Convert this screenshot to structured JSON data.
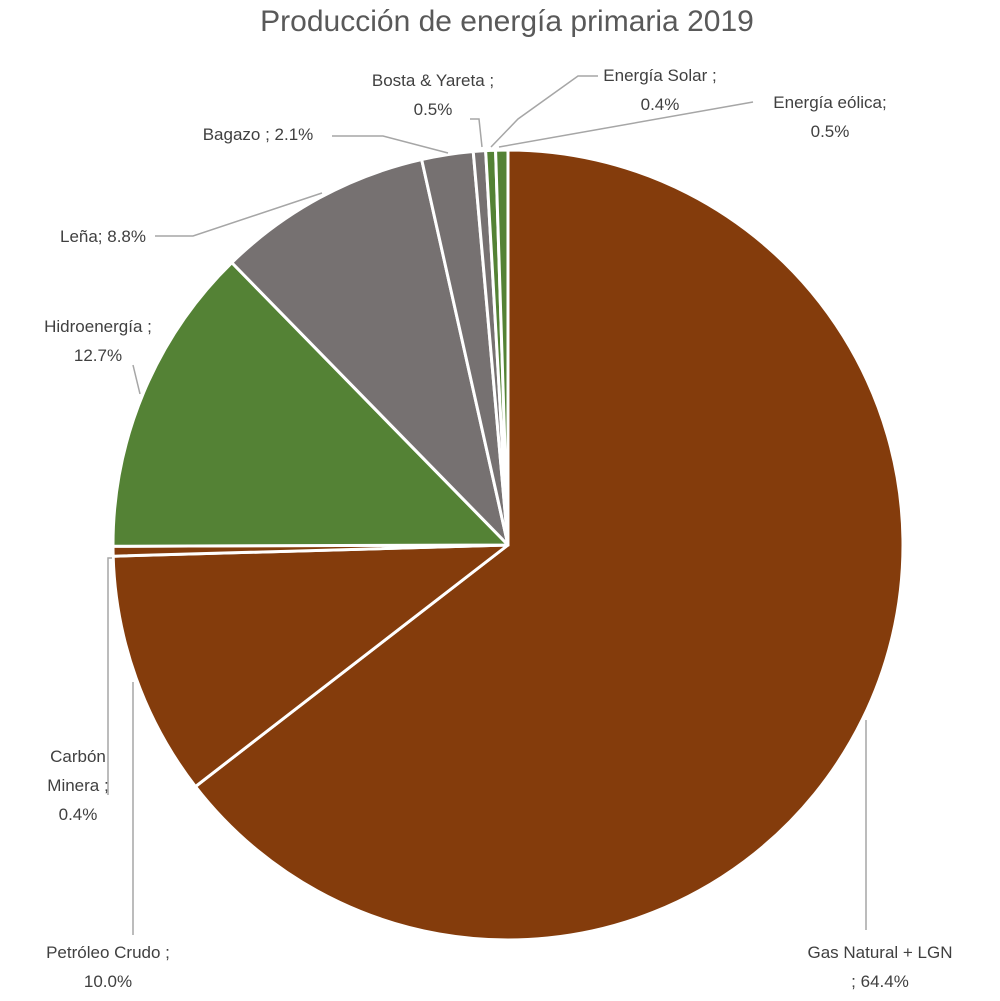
{
  "chart_data": {
    "type": "pie",
    "title": "Producción de energía primaria 2019",
    "start_angle_deg": 0,
    "direction": "clockwise",
    "slices": [
      {
        "name": "Gas Natural + LGN",
        "value": 64.4,
        "label_lines": [
          "Gas Natural + LGN",
          "; 64.4%"
        ],
        "color": "#843C0C"
      },
      {
        "name": "Petróleo Crudo",
        "value": 10.0,
        "label_lines": [
          "Petróleo Crudo ;",
          "10.0%"
        ],
        "color": "#843C0C"
      },
      {
        "name": "Carbón Minera",
        "value": 0.4,
        "label_lines": [
          "Carbón",
          "Minera ;",
          "0.4%"
        ],
        "color": "#843C0C"
      },
      {
        "name": "Hidroenergía",
        "value": 12.7,
        "label_lines": [
          "Hidroenergía ;",
          "12.7%"
        ],
        "color": "#548235"
      },
      {
        "name": "Leña",
        "value": 8.8,
        "label_lines": [
          "Leña; 8.8%"
        ],
        "color": "#767171"
      },
      {
        "name": "Bagazo",
        "value": 2.1,
        "label_lines": [
          "Bagazo ; 2.1%"
        ],
        "color": "#767171"
      },
      {
        "name": "Bosta & Yareta",
        "value": 0.5,
        "label_lines": [
          "Bosta & Yareta ;",
          "0.5%"
        ],
        "color": "#767171"
      },
      {
        "name": "Energía Solar",
        "value": 0.4,
        "label_lines": [
          "Energía Solar ;",
          "0.4%"
        ],
        "color": "#548235"
      },
      {
        "name": "Energía eólica",
        "value": 0.5,
        "label_lines": [
          "Energía eólica;",
          "0.5%"
        ],
        "color": "#548235"
      }
    ]
  }
}
